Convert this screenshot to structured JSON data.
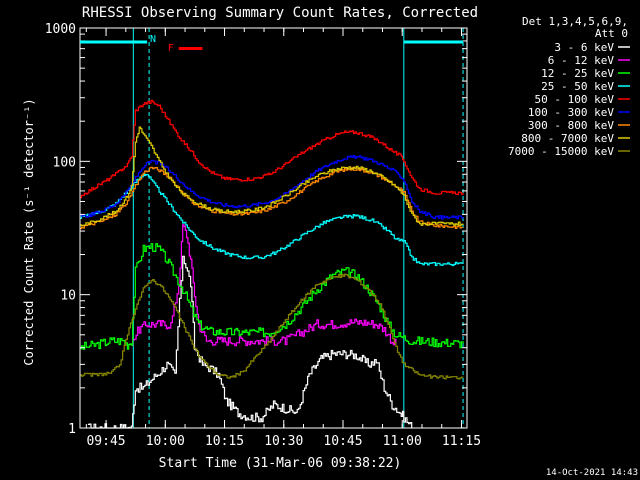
{
  "chart_data": {
    "type": "line",
    "title": "RHESSI Observing Summary Count Rates, Corrected",
    "xlabel": "Start Time (31-Mar-06 09:38:22)",
    "ylabel": "Corrected Count Rate (s⁻¹ detector⁻¹)",
    "yscale": "log",
    "ylim": [
      1,
      1000
    ],
    "xlim_minutes_after_0938": [
      0,
      98
    ],
    "x_ticks": [
      {
        "label": "09:45",
        "minutes": 6.6
      },
      {
        "label": "10:00",
        "minutes": 21.6
      },
      {
        "label": "10:15",
        "minutes": 36.6
      },
      {
        "label": "10:30",
        "minutes": 51.6
      },
      {
        "label": "10:45",
        "minutes": 66.6
      },
      {
        "label": "11:00",
        "minutes": 81.6
      },
      {
        "label": "11:15",
        "minutes": 96.6
      }
    ],
    "y_ticks": [
      {
        "label": "1",
        "value": 1
      },
      {
        "label": "10",
        "value": 10
      },
      {
        "label": "100",
        "value": 100
      },
      {
        "label": "1000",
        "value": 1000
      }
    ],
    "legend": {
      "placement": "right",
      "header": [
        "Det 1,3,4,5,6,9,",
        "Att 0"
      ]
    },
    "night_bars": [
      {
        "start": 0,
        "end": 17
      },
      {
        "start": 82,
        "end": 97
      }
    ],
    "markers": [
      {
        "label": "N",
        "x": 18.5,
        "color": "#00ffff"
      },
      {
        "label": "F",
        "x": 23,
        "color": "#ff0000"
      }
    ],
    "flare_bar": {
      "start": 25,
      "end": 31,
      "color": "#ff0000"
    },
    "vlines": [
      {
        "x": 13.5,
        "style": "solid"
      },
      {
        "x": 17.5,
        "style": "dashed"
      },
      {
        "x": 82,
        "style": "solid"
      },
      {
        "x": 97,
        "style": "dashed"
      }
    ],
    "series": [
      {
        "name": "3 - 6 keV",
        "color": "#ffffff",
        "points": [
          [
            2,
            1
          ],
          [
            13,
            1
          ],
          [
            14,
            2
          ],
          [
            16,
            2
          ],
          [
            18,
            2.3
          ],
          [
            20,
            2.6
          ],
          [
            22,
            3
          ],
          [
            24,
            2.5
          ],
          [
            26,
            20
          ],
          [
            28,
            12
          ],
          [
            29,
            4
          ],
          [
            31,
            3
          ],
          [
            33,
            2.8
          ],
          [
            35,
            2.5
          ],
          [
            37,
            1.6
          ],
          [
            40,
            1.3
          ],
          [
            43,
            1.2
          ],
          [
            46,
            1.2
          ],
          [
            49,
            1.5
          ],
          [
            52,
            1.4
          ],
          [
            55,
            1.3
          ],
          [
            58,
            2.5
          ],
          [
            61,
            3.3
          ],
          [
            64,
            3.6
          ],
          [
            67,
            3.6
          ],
          [
            70,
            3.5
          ],
          [
            73,
            3
          ],
          [
            75,
            3.2
          ],
          [
            77,
            2
          ],
          [
            79,
            1.5
          ],
          [
            81,
            1.3
          ],
          [
            82,
            1.2
          ],
          [
            84,
            1
          ]
        ]
      },
      {
        "name": "6 - 12 keV",
        "color": "#ff00ff",
        "points": [
          [
            13,
            4.5
          ],
          [
            15,
            5.5
          ],
          [
            17,
            6
          ],
          [
            20,
            6
          ],
          [
            23,
            6
          ],
          [
            25,
            12
          ],
          [
            26,
            33
          ],
          [
            27,
            28
          ],
          [
            28,
            18
          ],
          [
            29,
            10
          ],
          [
            30,
            6
          ],
          [
            32,
            4.5
          ],
          [
            36,
            4.5
          ],
          [
            42,
            4.5
          ],
          [
            48,
            4.5
          ],
          [
            52,
            4.5
          ],
          [
            56,
            5.2
          ],
          [
            60,
            6
          ],
          [
            64,
            6
          ],
          [
            68,
            6.2
          ],
          [
            72,
            6.2
          ],
          [
            75,
            6
          ],
          [
            77,
            5.5
          ],
          [
            79,
            4.5
          ],
          [
            80,
            4.2
          ]
        ]
      },
      {
        "name": "12 - 25 keV",
        "color": "#00ff00",
        "points": [
          [
            0,
            4
          ],
          [
            4,
            4.2
          ],
          [
            8,
            4.5
          ],
          [
            11,
            4.5
          ],
          [
            12,
            4.2
          ],
          [
            13,
            4.5
          ],
          [
            14,
            15
          ],
          [
            16,
            22
          ],
          [
            18,
            23
          ],
          [
            20,
            22
          ],
          [
            22,
            18
          ],
          [
            24,
            14
          ],
          [
            26,
            11
          ],
          [
            28,
            8
          ],
          [
            30,
            6
          ],
          [
            33,
            5.3
          ],
          [
            38,
            5.2
          ],
          [
            43,
            5.2
          ],
          [
            48,
            5.2
          ],
          [
            52,
            6
          ],
          [
            56,
            8
          ],
          [
            60,
            11
          ],
          [
            64,
            14
          ],
          [
            67,
            15
          ],
          [
            70,
            14
          ],
          [
            73,
            11
          ],
          [
            76,
            8
          ],
          [
            78,
            6
          ],
          [
            80,
            5
          ],
          [
            84,
            4.5
          ],
          [
            90,
            4.4
          ],
          [
            97,
            4.3
          ]
        ]
      },
      {
        "name": "25 - 50 keV",
        "color": "#00ffff",
        "points": [
          [
            0,
            38
          ],
          [
            3,
            40
          ],
          [
            6,
            43
          ],
          [
            9,
            48
          ],
          [
            12,
            60
          ],
          [
            14,
            70
          ],
          [
            16,
            80
          ],
          [
            17,
            80
          ],
          [
            18,
            72
          ],
          [
            20,
            60
          ],
          [
            22,
            50
          ],
          [
            24,
            42
          ],
          [
            26,
            35
          ],
          [
            28,
            30
          ],
          [
            30,
            26
          ],
          [
            34,
            22
          ],
          [
            38,
            20
          ],
          [
            42,
            19
          ],
          [
            46,
            19
          ],
          [
            50,
            21
          ],
          [
            54,
            25
          ],
          [
            58,
            30
          ],
          [
            62,
            35
          ],
          [
            66,
            38
          ],
          [
            70,
            39
          ],
          [
            74,
            36
          ],
          [
            76,
            33
          ],
          [
            78,
            30
          ],
          [
            80,
            26
          ],
          [
            82,
            25
          ],
          [
            84,
            19
          ],
          [
            86,
            17
          ],
          [
            90,
            17
          ],
          [
            97,
            17
          ]
        ]
      },
      {
        "name": "50 - 100 keV",
        "color": "#ff0000",
        "points": [
          [
            0,
            55
          ],
          [
            3,
            62
          ],
          [
            6,
            70
          ],
          [
            9,
            80
          ],
          [
            12,
            95
          ],
          [
            13,
            110
          ],
          [
            14,
            240
          ],
          [
            16,
            270
          ],
          [
            18,
            280
          ],
          [
            20,
            260
          ],
          [
            22,
            210
          ],
          [
            24,
            170
          ],
          [
            26,
            140
          ],
          [
            28,
            120
          ],
          [
            30,
            100
          ],
          [
            32,
            88
          ],
          [
            34,
            80
          ],
          [
            37,
            74
          ],
          [
            40,
            73
          ],
          [
            44,
            74
          ],
          [
            48,
            80
          ],
          [
            52,
            95
          ],
          [
            56,
            115
          ],
          [
            60,
            135
          ],
          [
            64,
            155
          ],
          [
            67,
            165
          ],
          [
            70,
            165
          ],
          [
            73,
            155
          ],
          [
            76,
            140
          ],
          [
            79,
            120
          ],
          [
            81,
            110
          ],
          [
            82,
            100
          ],
          [
            84,
            75
          ],
          [
            86,
            62
          ],
          [
            90,
            58
          ],
          [
            97,
            58
          ]
        ]
      },
      {
        "name": "100 - 300 keV",
        "color": "#0000ff",
        "points": [
          [
            0,
            38
          ],
          [
            3,
            40
          ],
          [
            6,
            43
          ],
          [
            9,
            48
          ],
          [
            12,
            60
          ],
          [
            14,
            75
          ],
          [
            16,
            92
          ],
          [
            18,
            100
          ],
          [
            20,
            97
          ],
          [
            22,
            88
          ],
          [
            24,
            78
          ],
          [
            26,
            68
          ],
          [
            28,
            60
          ],
          [
            30,
            55
          ],
          [
            33,
            50
          ],
          [
            36,
            47
          ],
          [
            40,
            46
          ],
          [
            44,
            47
          ],
          [
            48,
            50
          ],
          [
            52,
            57
          ],
          [
            56,
            70
          ],
          [
            60,
            85
          ],
          [
            64,
            98
          ],
          [
            67,
            106
          ],
          [
            70,
            108
          ],
          [
            73,
            104
          ],
          [
            76,
            96
          ],
          [
            79,
            86
          ],
          [
            81,
            78
          ],
          [
            82,
            72
          ],
          [
            84,
            50
          ],
          [
            86,
            42
          ],
          [
            90,
            38
          ],
          [
            97,
            38
          ]
        ]
      },
      {
        "name": "300 - 800 keV",
        "color": "#ff8800",
        "points": [
          [
            0,
            32
          ],
          [
            3,
            34
          ],
          [
            6,
            36
          ],
          [
            9,
            40
          ],
          [
            12,
            50
          ],
          [
            14,
            65
          ],
          [
            16,
            82
          ],
          [
            18,
            90
          ],
          [
            20,
            86
          ],
          [
            22,
            78
          ],
          [
            24,
            68
          ],
          [
            26,
            58
          ],
          [
            28,
            50
          ],
          [
            30,
            46
          ],
          [
            33,
            43
          ],
          [
            36,
            41
          ],
          [
            40,
            40
          ],
          [
            44,
            41
          ],
          [
            48,
            44
          ],
          [
            52,
            50
          ],
          [
            56,
            60
          ],
          [
            60,
            72
          ],
          [
            64,
            82
          ],
          [
            67,
            87
          ],
          [
            70,
            88
          ],
          [
            73,
            84
          ],
          [
            76,
            77
          ],
          [
            79,
            68
          ],
          [
            81,
            62
          ],
          [
            82,
            58
          ],
          [
            84,
            42
          ],
          [
            86,
            35
          ],
          [
            90,
            33
          ],
          [
            97,
            32
          ]
        ]
      },
      {
        "name": "800 - 7000 keV",
        "color": "#ddcc00",
        "points": [
          [
            0,
            33
          ],
          [
            3,
            35
          ],
          [
            6,
            38
          ],
          [
            9,
            42
          ],
          [
            12,
            55
          ],
          [
            13,
            65
          ],
          [
            14,
            140
          ],
          [
            15,
            180
          ],
          [
            16,
            160
          ],
          [
            18,
            130
          ],
          [
            20,
            100
          ],
          [
            22,
            80
          ],
          [
            24,
            66
          ],
          [
            26,
            57
          ],
          [
            28,
            52
          ],
          [
            30,
            48
          ],
          [
            33,
            44
          ],
          [
            36,
            42
          ],
          [
            40,
            42
          ],
          [
            44,
            43
          ],
          [
            48,
            47
          ],
          [
            52,
            55
          ],
          [
            56,
            66
          ],
          [
            60,
            78
          ],
          [
            64,
            86
          ],
          [
            67,
            90
          ],
          [
            70,
            90
          ],
          [
            73,
            86
          ],
          [
            76,
            78
          ],
          [
            79,
            68
          ],
          [
            81,
            60
          ],
          [
            82,
            55
          ],
          [
            84,
            40
          ],
          [
            86,
            34
          ],
          [
            90,
            34
          ],
          [
            97,
            34
          ]
        ]
      },
      {
        "name": "7000 - 15000 keV",
        "color": "#888800",
        "points": [
          [
            0,
            2.5
          ],
          [
            4,
            2.5
          ],
          [
            8,
            2.6
          ],
          [
            10,
            3
          ],
          [
            12,
            5
          ],
          [
            14,
            8
          ],
          [
            16,
            11
          ],
          [
            18,
            13
          ],
          [
            20,
            12
          ],
          [
            22,
            10
          ],
          [
            24,
            8
          ],
          [
            26,
            6
          ],
          [
            28,
            4.5
          ],
          [
            30,
            3.5
          ],
          [
            32,
            3
          ],
          [
            35,
            2.5
          ],
          [
            38,
            2.4
          ],
          [
            41,
            2.6
          ],
          [
            44,
            3.3
          ],
          [
            48,
            4.5
          ],
          [
            52,
            6.5
          ],
          [
            56,
            9
          ],
          [
            60,
            12
          ],
          [
            64,
            13.5
          ],
          [
            67,
            14
          ],
          [
            70,
            13
          ],
          [
            73,
            11
          ],
          [
            76,
            8.5
          ],
          [
            78,
            6
          ],
          [
            80,
            4
          ],
          [
            82,
            3
          ],
          [
            86,
            2.5
          ],
          [
            90,
            2.4
          ],
          [
            97,
            2.4
          ]
        ]
      }
    ],
    "footer_timestamp": "14-Oct-2021 14:43"
  }
}
